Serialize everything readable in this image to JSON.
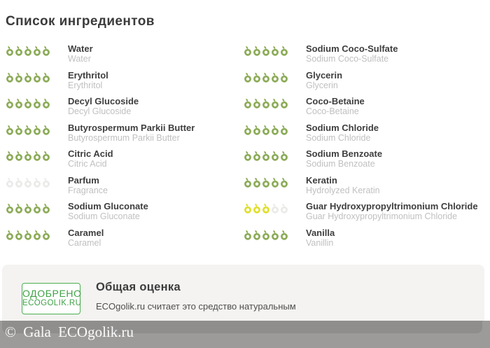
{
  "title": "Список ингредиентов",
  "colors": {
    "rating_green": "#8cab58",
    "rating_yellow": "#dfdf2d",
    "rating_empty": "#eaeae8",
    "badge_green": "#3fa146"
  },
  "ingredients": {
    "left": [
      {
        "name": "Water",
        "inci": "Water",
        "score": 5,
        "color": "green"
      },
      {
        "name": "Erythritol",
        "inci": "Erythritol",
        "score": 5,
        "color": "green"
      },
      {
        "name": "Decyl Glucoside",
        "inci": "Decyl Glucoside",
        "score": 5,
        "color": "green"
      },
      {
        "name": "Butyrospermum Parkii Butter",
        "inci": "Butyrospermum Parkii Butter",
        "score": 5,
        "color": "green"
      },
      {
        "name": "Citric Acid",
        "inci": "Citric Acid",
        "score": 5,
        "color": "green"
      },
      {
        "name": "Parfum",
        "inci": "Fragrance",
        "score": 0,
        "color": "green"
      },
      {
        "name": "Sodium Gluconate",
        "inci": "Sodium Gluconate",
        "score": 5,
        "color": "green"
      },
      {
        "name": "Caramel",
        "inci": "Caramel",
        "score": 5,
        "color": "green"
      }
    ],
    "right": [
      {
        "name": "Sodium Coco-Sulfate",
        "inci": "Sodium Coco-Sulfate",
        "score": 5,
        "color": "green"
      },
      {
        "name": "Glycerin",
        "inci": "Glycerin",
        "score": 5,
        "color": "green"
      },
      {
        "name": "Coco-Betaine",
        "inci": "Coco-Betaine",
        "score": 5,
        "color": "green"
      },
      {
        "name": "Sodium Chloride",
        "inci": "Sodium Chloride",
        "score": 5,
        "color": "green"
      },
      {
        "name": "Sodium Benzoate",
        "inci": "Sodium Benzoate",
        "score": 5,
        "color": "green"
      },
      {
        "name": "Keratin",
        "inci": "Hydrolyzed Keratin",
        "score": 5,
        "color": "green"
      },
      {
        "name": "Guar Hydroxypropyltrimonium Chloride",
        "inci": "Guar Hydroxypropyltrimonium Chloride",
        "score": 3,
        "color": "yellow"
      },
      {
        "name": "Vanilla",
        "inci": "Vanillin",
        "score": 5,
        "color": "green"
      }
    ]
  },
  "summary": {
    "badge_line1": "ОДОБРЕНО",
    "badge_line2": "ECOGOLIK.RU",
    "title": "Общая оценка",
    "text": "ECOgolik.ru считает это средство натуральным"
  },
  "footer": {
    "copyright": "© Gala ECOgolik.ru"
  }
}
